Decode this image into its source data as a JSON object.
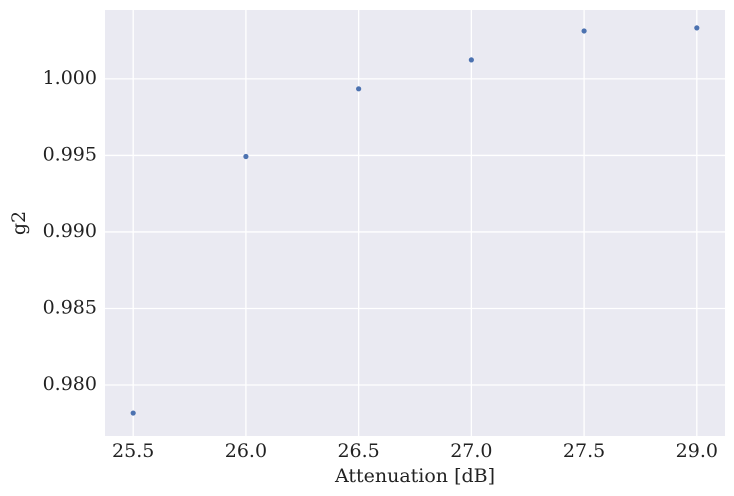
{
  "chart_data": {
    "type": "scatter",
    "x_label": "Attenuation [dB]",
    "y_label": "g2",
    "categories": [
      "25.5",
      "26.0",
      "26.5",
      "27.0",
      "27.5",
      "29.0"
    ],
    "values": [
      0.97817,
      0.99493,
      0.99935,
      1.00124,
      1.00313,
      1.00333
    ],
    "color": "#4c72b0",
    "ylim": [
      0.97667,
      1.0045
    ],
    "yticks": [
      {
        "value": 0.98,
        "label": "0.980"
      },
      {
        "value": 0.985,
        "label": "0.985"
      },
      {
        "value": 0.99,
        "label": "0.990"
      },
      {
        "value": 0.995,
        "label": "0.995"
      },
      {
        "value": 1.0,
        "label": "1.000"
      }
    ],
    "grid": true
  }
}
